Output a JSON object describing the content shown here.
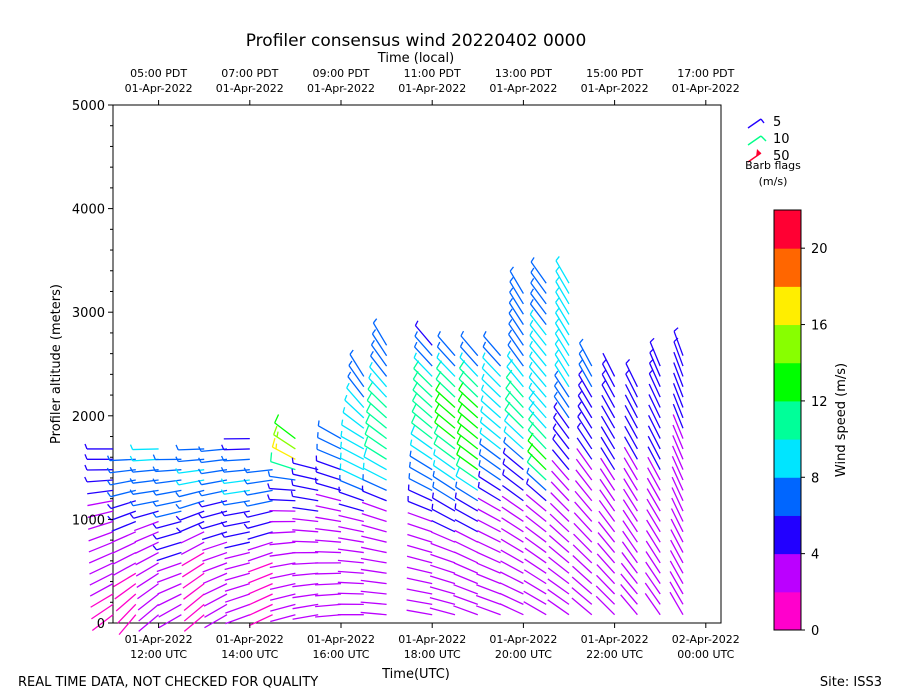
{
  "chart_data": {
    "type": "barb",
    "title": "Profiler consensus wind 20220402 0000",
    "x_top_label": "Time (local)",
    "xlabel": "Time(UTC)",
    "ylabel": "Profiler altitude (meters)",
    "y_range": [
      0,
      5000
    ],
    "y_ticks": [
      0,
      1000,
      2000,
      3000,
      4000,
      5000
    ],
    "x_range_utc": [
      "2022-04-01T11:00",
      "2022-04-02T00:20"
    ],
    "x_ticks_bottom": [
      {
        "utc": "2022-04-01T12:00",
        "line1": "01-Apr-2022",
        "line2": "12:00 UTC"
      },
      {
        "utc": "2022-04-01T14:00",
        "line1": "01-Apr-2022",
        "line2": "14:00 UTC"
      },
      {
        "utc": "2022-04-01T16:00",
        "line1": "01-Apr-2022",
        "line2": "16:00 UTC"
      },
      {
        "utc": "2022-04-01T18:00",
        "line1": "01-Apr-2022",
        "line2": "18:00 UTC"
      },
      {
        "utc": "2022-04-01T20:00",
        "line1": "01-Apr-2022",
        "line2": "20:00 UTC"
      },
      {
        "utc": "2022-04-01T22:00",
        "line1": "01-Apr-2022",
        "line2": "22:00 UTC"
      },
      {
        "utc": "2022-04-02T00:00",
        "line1": "02-Apr-2022",
        "line2": "00:00 UTC"
      }
    ],
    "x_ticks_top": [
      {
        "utc": "2022-04-01T12:00",
        "line1": "05:00 PDT",
        "line2": "01-Apr-2022"
      },
      {
        "utc": "2022-04-01T14:00",
        "line1": "07:00 PDT",
        "line2": "01-Apr-2022"
      },
      {
        "utc": "2022-04-01T16:00",
        "line1": "09:00 PDT",
        "line2": "01-Apr-2022"
      },
      {
        "utc": "2022-04-01T18:00",
        "line1": "11:00 PDT",
        "line2": "01-Apr-2022"
      },
      {
        "utc": "2022-04-01T20:00",
        "line1": "13:00 PDT",
        "line2": "01-Apr-2022"
      },
      {
        "utc": "2022-04-01T22:00",
        "line1": "15:00 PDT",
        "line2": "01-Apr-2022"
      },
      {
        "utc": "2022-04-02T00:00",
        "line1": "17:00 PDT",
        "line2": "01-Apr-2022"
      }
    ],
    "barb_legend": {
      "entries": [
        {
          "label": "5",
          "color": "#2200ff"
        },
        {
          "label": "10",
          "color": "#00ff88"
        },
        {
          "label": "50",
          "color": "#ff0030"
        }
      ],
      "title_line1": "Barb flags",
      "title_line2": "(m/s)"
    },
    "colorbar": {
      "label": "Wind speed (m/s)",
      "range": [
        0,
        22
      ],
      "ticks": [
        "0",
        "4",
        "8",
        "12",
        "16",
        "20"
      ],
      "tick_values": [
        0,
        4,
        8,
        12,
        16,
        20
      ],
      "colors": [
        "#ff00cc",
        "#bb00ff",
        "#2200ff",
        "#0066ff",
        "#00e5ff",
        "#00ff99",
        "#00ff00",
        "#88ff00",
        "#ffee00",
        "#ff6600",
        "#ff0033"
      ]
    },
    "series": [
      {
        "utc": "2022-04-01T11:00",
        "profile": [
          [
            0,
            1,
            230
          ],
          [
            300,
            2,
            240
          ],
          [
            900,
            3,
            250
          ],
          [
            1200,
            4,
            260
          ],
          [
            1500,
            5,
            270
          ],
          [
            1700,
            6,
            270
          ]
        ]
      },
      {
        "utc": "2022-04-01T11:30",
        "profile": [
          [
            100,
            1,
            220
          ],
          [
            500,
            2,
            240
          ],
          [
            1100,
            5,
            250
          ],
          [
            1400,
            7,
            260
          ],
          [
            1650,
            8,
            270
          ]
        ]
      },
      {
        "utc": "2022-04-01T12:00",
        "profile": [
          [
            200,
            2,
            230
          ],
          [
            600,
            2,
            240
          ],
          [
            1000,
            4,
            250
          ],
          [
            1200,
            7,
            260
          ],
          [
            1500,
            8,
            265
          ],
          [
            1750,
            9,
            270
          ]
        ]
      },
      {
        "utc": "2022-04-01T12:30",
        "profile": [
          [
            150,
            2,
            240
          ],
          [
            500,
            3,
            250
          ],
          [
            1000,
            6,
            255
          ],
          [
            1300,
            8,
            260
          ],
          [
            1600,
            7,
            270
          ]
        ]
      },
      {
        "utc": "2022-04-01T13:00",
        "profile": [
          [
            250,
            1,
            230
          ],
          [
            700,
            2,
            240
          ],
          [
            1100,
            6,
            250
          ],
          [
            1400,
            9,
            260
          ],
          [
            1750,
            6,
            270
          ]
        ]
      },
      {
        "utc": "2022-04-01T13:30",
        "profile": [
          [
            200,
            2,
            240
          ],
          [
            600,
            3,
            250
          ],
          [
            1100,
            5,
            255
          ],
          [
            1400,
            7,
            260
          ],
          [
            1700,
            6,
            265
          ]
        ]
      },
      {
        "utc": "2022-04-01T14:00",
        "profile": [
          [
            150,
            2,
            250
          ],
          [
            550,
            3,
            255
          ],
          [
            1100,
            6,
            260
          ],
          [
            1350,
            9,
            262
          ],
          [
            1650,
            6,
            268
          ],
          [
            1850,
            3,
            270
          ]
        ]
      },
      {
        "utc": "2022-04-01T14:30",
        "profile": [
          [
            250,
            1,
            245
          ],
          [
            600,
            2,
            250
          ],
          [
            1000,
            5,
            255
          ],
          [
            1300,
            8,
            260
          ],
          [
            1550,
            6,
            265
          ]
        ]
      },
      {
        "utc": "2022-04-01T15:00",
        "profile": [
          [
            200,
            2,
            255
          ],
          [
            600,
            2,
            260
          ],
          [
            1000,
            3,
            270
          ],
          [
            1350,
            6,
            275
          ],
          [
            1600,
            17,
            300
          ],
          [
            1850,
            12,
            310
          ]
        ]
      },
      {
        "utc": "2022-04-01T15:30",
        "profile": [
          [
            150,
            2,
            260
          ],
          [
            500,
            2,
            265
          ],
          [
            900,
            3,
            275
          ],
          [
            1200,
            5,
            280
          ],
          [
            1500,
            5,
            285
          ]
        ]
      },
      {
        "utc": "2022-04-01T16:00",
        "profile": [
          [
            200,
            2,
            265
          ],
          [
            600,
            2,
            270
          ],
          [
            1000,
            3,
            280
          ],
          [
            1200,
            4,
            285
          ],
          [
            1500,
            6,
            290
          ],
          [
            1800,
            6,
            300
          ]
        ]
      },
      {
        "utc": "2022-04-01T16:30",
        "profile": [
          [
            150,
            2,
            270
          ],
          [
            550,
            3,
            275
          ],
          [
            1050,
            4,
            285
          ],
          [
            1350,
            8,
            295
          ],
          [
            1750,
            9,
            300
          ],
          [
            2100,
            8,
            320
          ],
          [
            2450,
            6,
            330
          ]
        ]
      },
      {
        "utc": "2022-04-01T17:00",
        "profile": [
          [
            200,
            2,
            275
          ],
          [
            600,
            2,
            280
          ],
          [
            1100,
            4,
            290
          ],
          [
            1500,
            10,
            300
          ],
          [
            1900,
            12,
            310
          ],
          [
            2300,
            8,
            320
          ],
          [
            2700,
            6,
            330
          ]
        ]
      },
      {
        "utc": "2022-04-01T18:00",
        "profile": [
          [
            200,
            2,
            280
          ],
          [
            600,
            3,
            285
          ],
          [
            1000,
            4,
            290
          ],
          [
            1400,
            7,
            300
          ],
          [
            1900,
            12,
            310
          ],
          [
            2300,
            10,
            315
          ],
          [
            2700,
            5,
            320
          ]
        ]
      },
      {
        "utc": "2022-04-01T18:30",
        "profile": [
          [
            200,
            2,
            285
          ],
          [
            650,
            3,
            290
          ],
          [
            1050,
            5,
            300
          ],
          [
            1450,
            9,
            305
          ],
          [
            1900,
            14,
            310
          ],
          [
            2300,
            10,
            315
          ],
          [
            2650,
            5,
            320
          ]
        ]
      },
      {
        "utc": "2022-04-01T19:00",
        "profile": [
          [
            200,
            2,
            290
          ],
          [
            600,
            3,
            295
          ],
          [
            1050,
            5,
            300
          ],
          [
            1400,
            12,
            305
          ],
          [
            1850,
            14,
            310
          ],
          [
            2250,
            11,
            315
          ],
          [
            2600,
            6,
            320
          ]
        ]
      },
      {
        "utc": "2022-04-01T19:30",
        "profile": [
          [
            200,
            2,
            290
          ],
          [
            650,
            2,
            295
          ],
          [
            1100,
            4,
            300
          ],
          [
            1450,
            7,
            305
          ],
          [
            1850,
            9,
            310
          ],
          [
            2250,
            9,
            315
          ],
          [
            2650,
            6,
            320
          ]
        ]
      },
      {
        "utc": "2022-04-01T20:00",
        "profile": [
          [
            250,
            2,
            295
          ],
          [
            600,
            2,
            300
          ],
          [
            1100,
            4,
            305
          ],
          [
            1500,
            6,
            310
          ],
          [
            1900,
            11,
            315
          ],
          [
            2250,
            10,
            320
          ],
          [
            2550,
            6,
            325
          ],
          [
            3250,
            8,
            330
          ]
        ]
      },
      {
        "utc": "2022-04-01T20:30",
        "profile": [
          [
            200,
            2,
            300
          ],
          [
            600,
            2,
            305
          ],
          [
            1100,
            3,
            310
          ],
          [
            1500,
            14,
            315
          ],
          [
            1850,
            10,
            318
          ],
          [
            2300,
            9,
            320
          ],
          [
            3350,
            7,
            325
          ]
        ]
      },
      {
        "utc": "2022-04-01T21:00",
        "profile": [
          [
            250,
            2,
            305
          ],
          [
            600,
            2,
            310
          ],
          [
            1050,
            3,
            315
          ],
          [
            1450,
            4,
            320
          ],
          [
            1900,
            6,
            325
          ],
          [
            2350,
            9,
            328
          ],
          [
            3300,
            8,
            330
          ]
        ]
      },
      {
        "utc": "2022-04-01T21:30",
        "profile": [
          [
            200,
            2,
            310
          ],
          [
            650,
            2,
            315
          ],
          [
            1100,
            3,
            320
          ],
          [
            1500,
            4,
            325
          ],
          [
            1850,
            5,
            328
          ],
          [
            2200,
            6,
            330
          ],
          [
            2500,
            6,
            332
          ]
        ]
      },
      {
        "utc": "2022-04-01T22:00",
        "profile": [
          [
            200,
            2,
            315
          ],
          [
            650,
            2,
            320
          ],
          [
            1050,
            3,
            325
          ],
          [
            1450,
            4,
            328
          ],
          [
            1850,
            4,
            330
          ],
          [
            2250,
            5,
            332
          ],
          [
            2450,
            4,
            334
          ]
        ]
      },
      {
        "utc": "2022-04-01T22:30",
        "profile": [
          [
            250,
            2,
            320
          ],
          [
            600,
            2,
            325
          ],
          [
            1100,
            3,
            328
          ],
          [
            1500,
            4,
            330
          ],
          [
            1900,
            4,
            332
          ],
          [
            2300,
            5,
            334
          ]
        ]
      },
      {
        "utc": "2022-04-01T23:00",
        "profile": [
          [
            200,
            2,
            325
          ],
          [
            650,
            2,
            328
          ],
          [
            1100,
            3,
            330
          ],
          [
            1450,
            4,
            332
          ],
          [
            1900,
            4,
            334
          ],
          [
            2300,
            5,
            336
          ],
          [
            2550,
            6,
            338
          ]
        ]
      },
      {
        "utc": "2022-04-01T23:30",
        "profile": [
          [
            200,
            2,
            330
          ],
          [
            650,
            2,
            332
          ],
          [
            1050,
            3,
            335
          ],
          [
            1400,
            3,
            336
          ],
          [
            1800,
            4,
            338
          ],
          [
            2200,
            4,
            339
          ],
          [
            2600,
            5,
            340
          ]
        ]
      }
    ]
  },
  "footer": {
    "left_text": "REAL TIME DATA, NOT CHECKED FOR QUALITY",
    "right_text": "Site: ISS3"
  }
}
